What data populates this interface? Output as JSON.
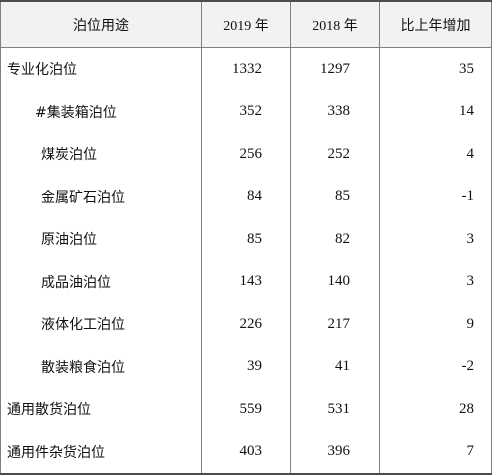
{
  "table": {
    "headers": [
      "泊位用途",
      "2019 年",
      "2018 年",
      "比上年增加"
    ],
    "rows": [
      {
        "name": "专业化泊位",
        "level": 0,
        "y2019": "1332",
        "y2018": "1297",
        "increase": "35"
      },
      {
        "name": "#集装箱泊位",
        "level": 1,
        "y2019": "352",
        "y2018": "338",
        "increase": "14"
      },
      {
        "name": "煤炭泊位",
        "level": 2,
        "y2019": "256",
        "y2018": "252",
        "increase": "4"
      },
      {
        "name": "金属矿石泊位",
        "level": 2,
        "y2019": "84",
        "y2018": "85",
        "increase": "-1"
      },
      {
        "name": "原油泊位",
        "level": 2,
        "y2019": "85",
        "y2018": "82",
        "increase": "3"
      },
      {
        "name": "成品油泊位",
        "level": 2,
        "y2019": "143",
        "y2018": "140",
        "increase": "3"
      },
      {
        "name": "液体化工泊位",
        "level": 2,
        "y2019": "226",
        "y2018": "217",
        "increase": "9"
      },
      {
        "name": "散装粮食泊位",
        "level": 2,
        "y2019": "39",
        "y2018": "41",
        "increase": "-2"
      },
      {
        "name": "通用散货泊位",
        "level": 0,
        "y2019": "559",
        "y2018": "531",
        "increase": "28"
      },
      {
        "name": "通用件杂货泊位",
        "level": 0,
        "y2019": "403",
        "y2018": "396",
        "increase": "7"
      }
    ]
  }
}
